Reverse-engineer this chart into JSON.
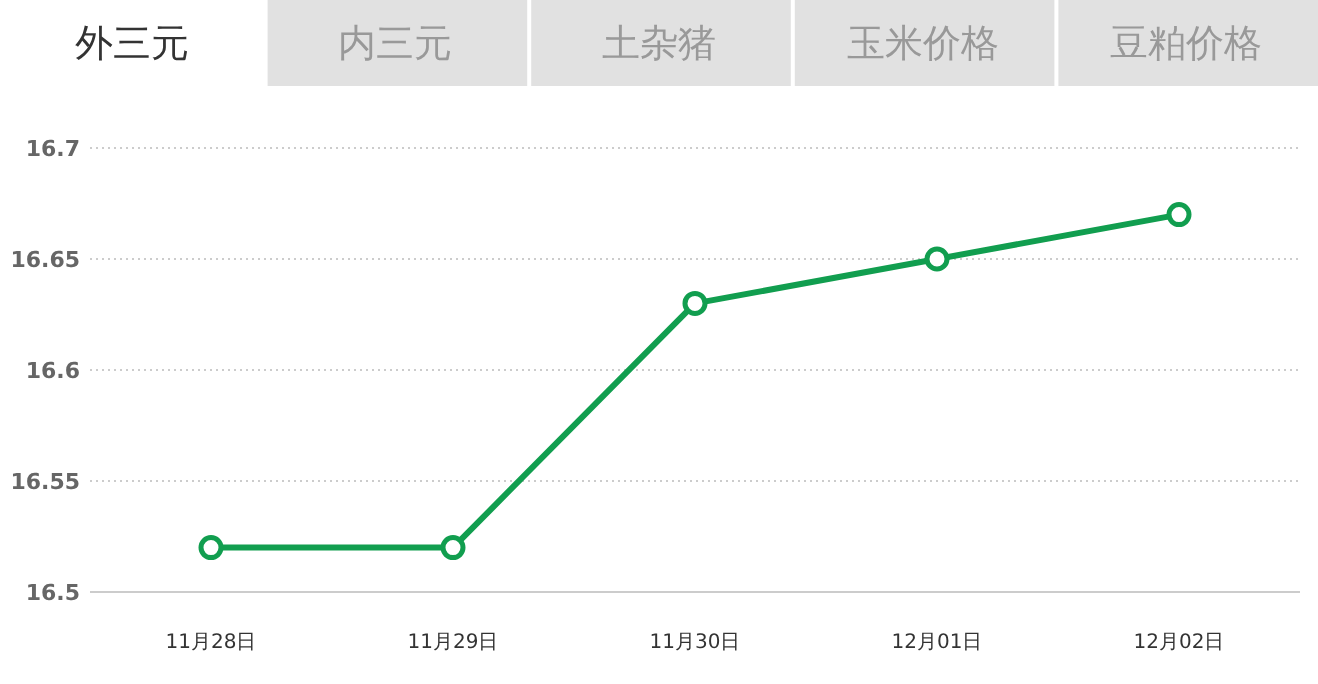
{
  "chart_data": {
    "type": "line",
    "title": "外三元",
    "annotations": [
      "内三元",
      "土杂猪",
      "玉米价格",
      "豆粕价格"
    ],
    "categories": [
      "11月28日",
      "11月29日",
      "11月30日",
      "12月01日",
      "12月02日"
    ],
    "series": [
      {
        "color": "#119e4f",
        "values": [
          16.52,
          16.52,
          16.63,
          16.65,
          16.67
        ]
      }
    ],
    "ylim": [
      16.5,
      16.7
    ],
    "yticks": [
      16.5,
      16.55,
      16.6,
      16.65,
      16.7
    ],
    "grid": "y",
    "marker": "circle",
    "line_style": "solid"
  }
}
